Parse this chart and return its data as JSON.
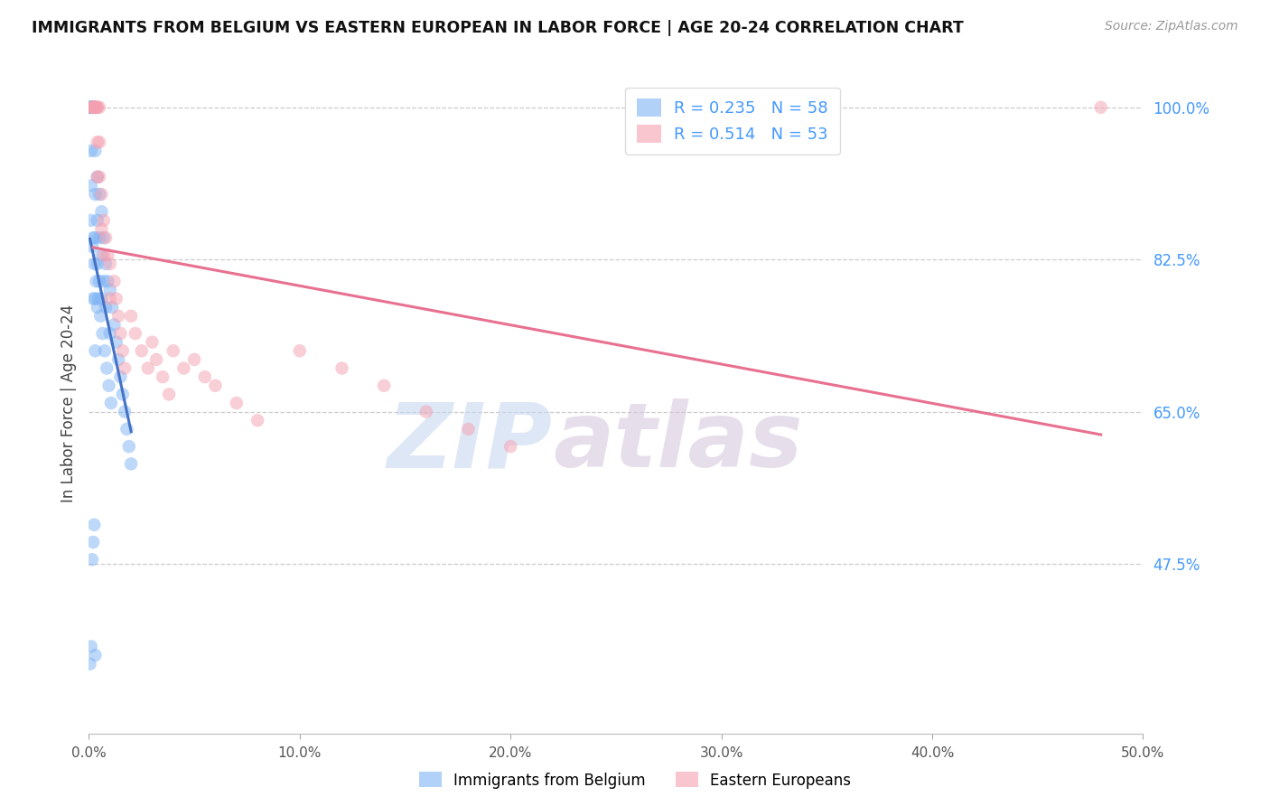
{
  "title": "IMMIGRANTS FROM BELGIUM VS EASTERN EUROPEAN IN LABOR FORCE | AGE 20-24 CORRELATION CHART",
  "source": "Source: ZipAtlas.com",
  "ylabel": "In Labor Force | Age 20-24",
  "xlim": [
    0.0,
    50.0
  ],
  "ylim": [
    28.0,
    104.0
  ],
  "xtick_labels": [
    "0.0%",
    "10.0%",
    "20.0%",
    "30.0%",
    "40.0%",
    "50.0%"
  ],
  "xtick_values": [
    0.0,
    10.0,
    20.0,
    30.0,
    40.0,
    50.0
  ],
  "ytick_labels": [
    "100.0%",
    "82.5%",
    "65.0%",
    "47.5%"
  ],
  "ytick_values": [
    100.0,
    82.5,
    65.0,
    47.5
  ],
  "blue_color": "#7EB3F5",
  "pink_color": "#F5A0B0",
  "blue_line_color": "#4472C4",
  "pink_line_color": "#E87090",
  "legend_blue_r": "R = 0.235",
  "legend_blue_n": "N = 58",
  "legend_pink_r": "R = 0.514",
  "legend_pink_n": "N = 53",
  "watermark_zip": "ZIP",
  "watermark_atlas": "atlas",
  "blue_x": [
    0.1,
    0.1,
    0.1,
    0.1,
    0.1,
    0.1,
    0.1,
    0.1,
    0.1,
    0.1,
    0.2,
    0.2,
    0.2,
    0.2,
    0.2,
    0.3,
    0.3,
    0.3,
    0.3,
    0.3,
    0.3,
    0.4,
    0.4,
    0.4,
    0.4,
    0.5,
    0.5,
    0.5,
    0.6,
    0.6,
    0.6,
    0.7,
    0.7,
    0.8,
    0.8,
    0.9,
    1.0,
    1.0,
    1.1,
    1.2,
    1.3,
    1.4,
    1.5,
    1.6,
    1.7,
    1.8,
    1.9,
    2.0,
    0.15,
    0.25,
    0.35,
    0.45,
    0.55,
    0.65,
    0.75,
    0.85,
    0.95,
    1.05
  ],
  "blue_y": [
    100.0,
    100.0,
    100.0,
    100.0,
    100.0,
    100.0,
    100.0,
    95.0,
    91.0,
    87.0,
    100.0,
    100.0,
    100.0,
    85.0,
    78.0,
    100.0,
    95.0,
    90.0,
    85.0,
    78.0,
    72.0,
    92.0,
    87.0,
    82.0,
    77.0,
    90.0,
    85.0,
    80.0,
    88.0,
    83.0,
    78.0,
    85.0,
    80.0,
    82.0,
    77.0,
    80.0,
    79.0,
    74.0,
    77.0,
    75.0,
    73.0,
    71.0,
    69.0,
    67.0,
    65.0,
    63.0,
    61.0,
    59.0,
    84.0,
    82.0,
    80.0,
    78.0,
    76.0,
    74.0,
    72.0,
    70.0,
    68.0,
    66.0
  ],
  "blue_x_low": [
    0.05,
    0.1,
    0.15,
    0.2,
    0.25,
    0.3
  ],
  "blue_y_low": [
    36.0,
    38.0,
    48.0,
    50.0,
    52.0,
    37.0
  ],
  "pink_x": [
    0.2,
    0.2,
    0.2,
    0.2,
    0.2,
    0.3,
    0.3,
    0.3,
    0.3,
    0.3,
    0.4,
    0.4,
    0.4,
    0.4,
    0.5,
    0.5,
    0.5,
    0.6,
    0.6,
    0.7,
    0.7,
    0.8,
    0.9,
    1.0,
    1.0,
    1.2,
    1.3,
    1.4,
    1.5,
    1.6,
    1.7,
    2.0,
    2.2,
    2.5,
    2.8,
    3.0,
    3.2,
    3.5,
    3.8,
    4.0,
    4.5,
    5.0,
    5.5,
    6.0,
    7.0,
    8.0,
    10.0,
    12.0,
    14.0,
    16.0,
    18.0,
    20.0,
    48.0
  ],
  "pink_y": [
    100.0,
    100.0,
    100.0,
    100.0,
    100.0,
    100.0,
    100.0,
    100.0,
    100.0,
    100.0,
    100.0,
    100.0,
    96.0,
    92.0,
    100.0,
    96.0,
    92.0,
    90.0,
    86.0,
    87.0,
    83.0,
    85.0,
    83.0,
    82.0,
    78.0,
    80.0,
    78.0,
    76.0,
    74.0,
    72.0,
    70.0,
    76.0,
    74.0,
    72.0,
    70.0,
    73.0,
    71.0,
    69.0,
    67.0,
    72.0,
    70.0,
    71.0,
    69.0,
    68.0,
    66.0,
    64.0,
    72.0,
    70.0,
    68.0,
    65.0,
    63.0,
    61.0,
    100.0
  ]
}
